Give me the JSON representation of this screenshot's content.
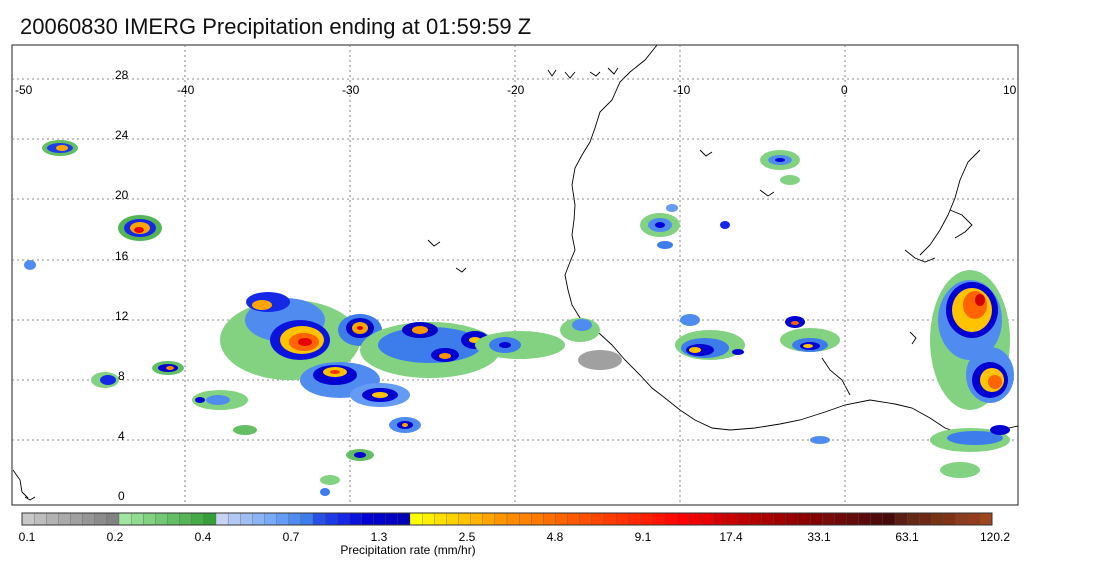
{
  "title": "20060830 IMERG Precipitation ending at 01:59:59 Z",
  "map": {
    "lon_labels": [
      "-50",
      "-40",
      "-30",
      "-20",
      "-10",
      "0",
      "10"
    ],
    "lat_labels": [
      "28",
      "24",
      "20",
      "16",
      "12",
      "8",
      "4",
      "0"
    ]
  },
  "colorbar": {
    "label": "Precipitation rate (mm/hr)",
    "tick_labels": [
      "0.1",
      "0.2",
      "0.4",
      "0.7",
      "1.3",
      "2.5",
      "4.8",
      "9.1",
      "17.4",
      "33.1",
      "63.1",
      "120.2"
    ],
    "colors": [
      "#c8c8c8",
      "#bdbdbd",
      "#b3b3b3",
      "#aaaaaa",
      "#a0a0a0",
      "#969696",
      "#8c8c8c",
      "#828282",
      "#a0e6a0",
      "#91dc91",
      "#82d282",
      "#73c873",
      "#64be64",
      "#55b455",
      "#46aa46",
      "#379f37",
      "#c8d2f5",
      "#b4c8f5",
      "#a0bef5",
      "#8cb4f5",
      "#78aaf5",
      "#649bf5",
      "#508cf0",
      "#3c7deb",
      "#2850e6",
      "#1e3ce6",
      "#1428e6",
      "#0a14dc",
      "#0000d2",
      "#0000c8",
      "#0000be",
      "#0000b4",
      "#ffff00",
      "#fff000",
      "#ffe100",
      "#ffd200",
      "#ffc300",
      "#ffb400",
      "#ffa500",
      "#ff9600",
      "#ff8c00",
      "#ff8200",
      "#ff7800",
      "#ff6e00",
      "#ff6400",
      "#ff5a00",
      "#ff5000",
      "#ff4600",
      "#ff3c00",
      "#ff3200",
      "#ff2800",
      "#ff1e00",
      "#ff1400",
      "#ff0a00",
      "#ff0000",
      "#f00000",
      "#e60000",
      "#d20000",
      "#c80000",
      "#be0000",
      "#b40000",
      "#aa0000",
      "#a00000",
      "#960000",
      "#8c0000",
      "#820000",
      "#780a0a",
      "#6e0a0a",
      "#640a0a",
      "#5a0a0a",
      "#500a0a",
      "#460a0a",
      "#5a1e14",
      "#642814",
      "#6e2814",
      "#783214",
      "#823214",
      "#8c3c1e",
      "#963c1e",
      "#a0461e"
    ]
  }
}
